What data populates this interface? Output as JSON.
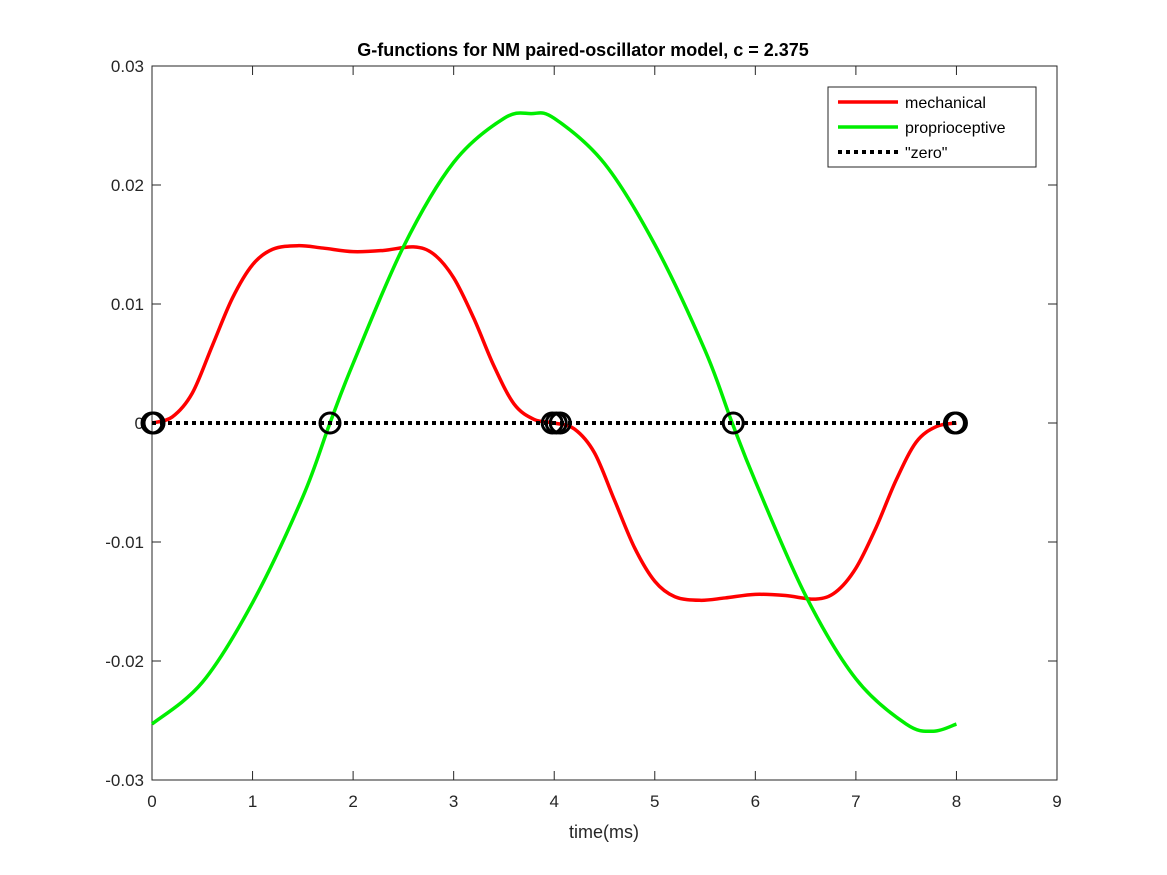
{
  "chart_data": {
    "type": "line",
    "title": "G-functions for NM paired-oscillator model, c = 2.375",
    "xlabel": "time(ms)",
    "ylabel": "",
    "xlim": [
      0,
      9
    ],
    "ylim": [
      -0.03,
      0.03
    ],
    "x_ticks": [
      0,
      1,
      2,
      3,
      4,
      5,
      6,
      7,
      8,
      9
    ],
    "y_ticks": [
      -0.03,
      -0.02,
      -0.01,
      0,
      0.01,
      0.02,
      0.03
    ],
    "x_tick_labels": [
      "0",
      "1",
      "2",
      "3",
      "4",
      "5",
      "6",
      "7",
      "8",
      "9"
    ],
    "y_tick_labels": [
      "-0.03",
      "-0.02",
      "-0.01",
      "0",
      "0.01",
      "0.02",
      "0.03"
    ],
    "grid": false,
    "legend_position": "top-right",
    "series": [
      {
        "name": "mechanical",
        "color": "#ff0000",
        "style": "solid",
        "x": [
          0,
          0.2,
          0.4,
          0.6,
          0.8,
          1.0,
          1.2,
          1.45,
          1.7,
          2.0,
          2.3,
          2.6,
          2.8,
          3.0,
          3.2,
          3.4,
          3.6,
          3.8,
          4.0,
          4.2,
          4.4,
          4.6,
          4.8,
          5.0,
          5.2,
          5.45,
          5.7,
          6.0,
          6.3,
          6.6,
          6.8,
          7.0,
          7.2,
          7.4,
          7.6,
          7.8,
          8.0
        ],
        "y": [
          0,
          0.0005,
          0.0025,
          0.0065,
          0.0105,
          0.0133,
          0.0146,
          0.0149,
          0.0147,
          0.0144,
          0.0145,
          0.0148,
          0.0142,
          0.0122,
          0.0088,
          0.0048,
          0.0016,
          0.0003,
          0,
          -0.0005,
          -0.0025,
          -0.0065,
          -0.0105,
          -0.0133,
          -0.0146,
          -0.0149,
          -0.0147,
          -0.0144,
          -0.0145,
          -0.0148,
          -0.0142,
          -0.0122,
          -0.0088,
          -0.0048,
          -0.0016,
          -0.0003,
          0
        ]
      },
      {
        "name": "proprioceptive",
        "color": "#00ee00",
        "style": "solid",
        "x": [
          0,
          0.5,
          1.0,
          1.5,
          1.77,
          2.0,
          2.5,
          3.0,
          3.5,
          3.77,
          4.0,
          4.5,
          5.0,
          5.5,
          5.77,
          6.0,
          6.5,
          7.0,
          7.5,
          7.77,
          8.0
        ],
        "y": [
          -0.0253,
          -0.0218,
          -0.0151,
          -0.0062,
          0,
          0.005,
          0.0148,
          0.0219,
          0.0256,
          0.026,
          0.0256,
          0.0218,
          0.015,
          0.0061,
          0,
          -0.0049,
          -0.0145,
          -0.0215,
          -0.0253,
          -0.0259,
          -0.0253
        ]
      },
      {
        "name": "\"zero\"",
        "color": "#000000",
        "style": "dotted",
        "x": [
          0,
          8
        ],
        "y": [
          0,
          0
        ]
      }
    ],
    "markers": {
      "color": "#000000",
      "shape": "circle",
      "x": [
        0,
        0.02,
        1.77,
        3.98,
        4.02,
        4.06,
        5.78,
        7.98,
        8.0
      ],
      "y": [
        0,
        0,
        0,
        0,
        0,
        0,
        0,
        0,
        0
      ]
    }
  }
}
